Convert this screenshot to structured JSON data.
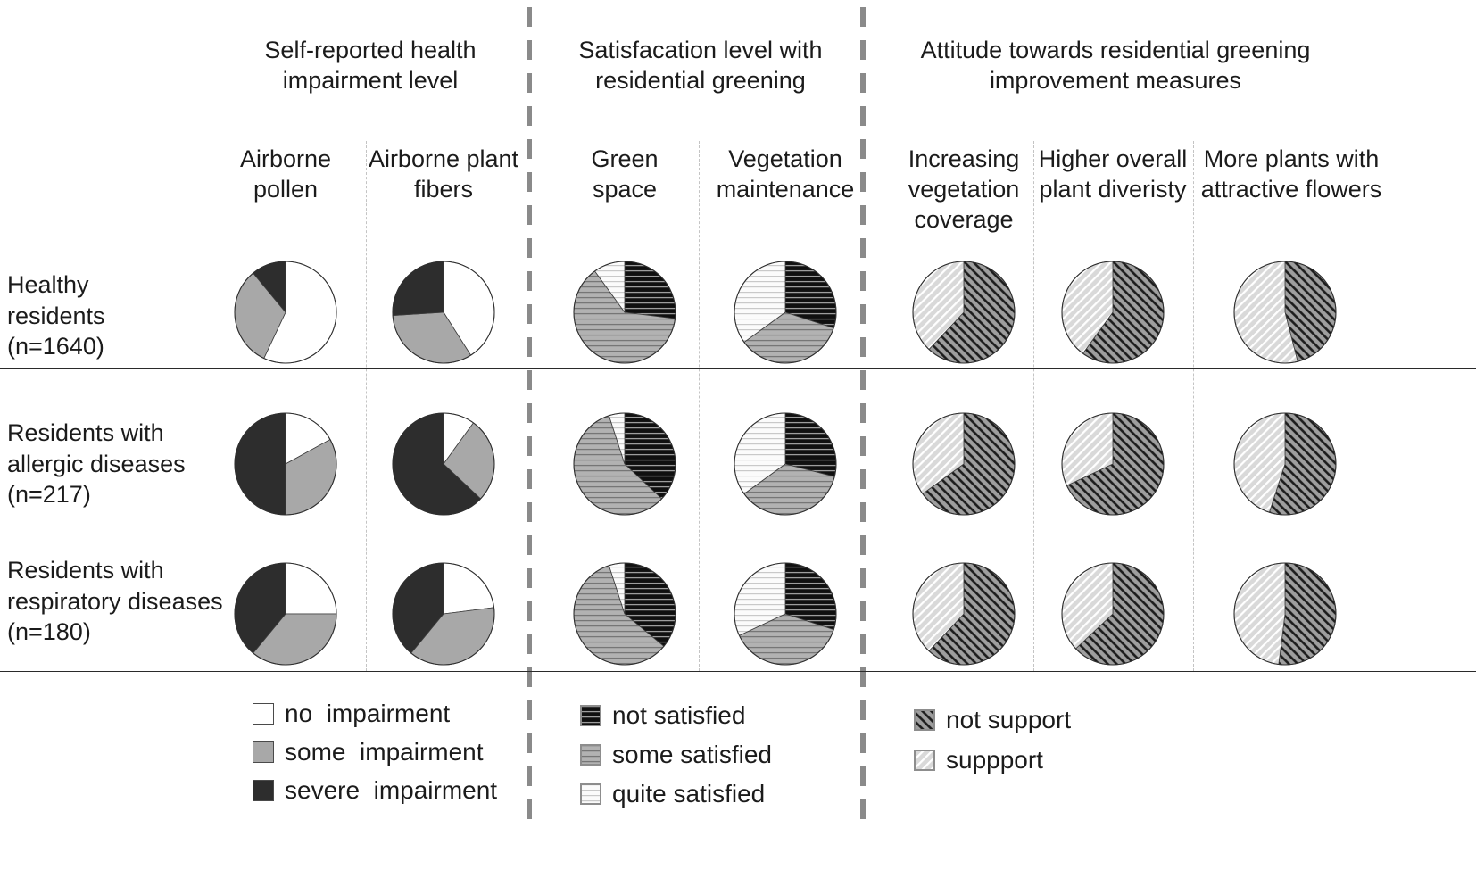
{
  "display": {
    "row_labels": [
      "Healthy\nresidents\n(n=1640)",
      "Residents with\nallergic diseases\n(n=217)",
      "Residents with\nrespiratory diseases\n(n=180)"
    ],
    "legend1": [
      "no  impairment",
      "some  impairment",
      "severe  impairment"
    ],
    "legend2": [
      "not satisfied",
      "some satisfied",
      "quite satisfied"
    ],
    "legend3": [
      "not support",
      "suppport"
    ]
  },
  "chart_data": {
    "type": "pie",
    "rows": [
      "Healthy residents (n=1640)",
      "Residents with allergic diseases (n=217)",
      "Residents with respiratory diseases (n=180)"
    ],
    "sections": [
      {
        "title": "Self-reported health impairment level",
        "legend": [
          "no  impairment",
          "some  impairment",
          "severe  impairment"
        ],
        "fills": [
          "white",
          "gray",
          "black"
        ],
        "columns": [
          {
            "label": "Airborne pollen",
            "values_by_row": [
              [
                57,
                32,
                11
              ],
              [
                17,
                33,
                50
              ],
              [
                25,
                36,
                39
              ]
            ]
          },
          {
            "label": "Airborne plant fibers",
            "values_by_row": [
              [
                41,
                33,
                26
              ],
              [
                10,
                27,
                63
              ],
              [
                23,
                38,
                39
              ]
            ]
          }
        ]
      },
      {
        "title": "Satisfacation level with residential greening",
        "legend": [
          "not satisfied",
          "some satisfied",
          "quite satisfied"
        ],
        "fills": [
          "notsat",
          "somesat",
          "quitesat"
        ],
        "columns": [
          {
            "label": "Green space",
            "values_by_row": [
              [
                27,
                63,
                10
              ],
              [
                37,
                58,
                5
              ],
              [
                36,
                59,
                5
              ]
            ]
          },
          {
            "label": "Vegetation maintenance",
            "values_by_row": [
              [
                30,
                35,
                35
              ],
              [
                29,
                36,
                35
              ],
              [
                30,
                38,
                32
              ]
            ]
          }
        ]
      },
      {
        "title": "Attitude towards residential greening improvement measures",
        "legend": [
          "not support",
          "suppport"
        ],
        "fills": [
          "notsup",
          "sup"
        ],
        "columns": [
          {
            "label": "Increasing vegetation coverage",
            "values_by_row": [
              [
                62,
                38
              ],
              [
                65,
                35
              ],
              [
                62,
                38
              ]
            ]
          },
          {
            "label": "Higher overall plant diveristy",
            "values_by_row": [
              [
                60,
                40
              ],
              [
                68,
                32
              ],
              [
                63,
                37
              ]
            ]
          },
          {
            "label": "More plants with attractive flowers",
            "values_by_row": [
              [
                46,
                54
              ],
              [
                55,
                45
              ],
              [
                52,
                48
              ]
            ]
          }
        ]
      }
    ],
    "colors": {
      "no_impairment": "#ffffff",
      "some_impairment": "#a8a8a8",
      "severe_impairment": "#2d2d2d",
      "hatch_dark": "#1c1c1c",
      "hatch_light": "#d9d9d9"
    }
  }
}
